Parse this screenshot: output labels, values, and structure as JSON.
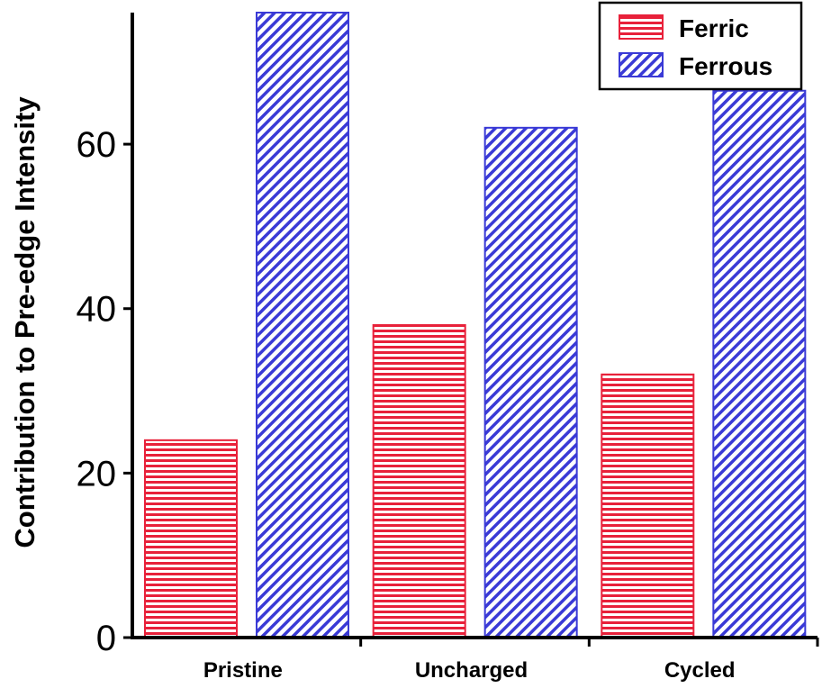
{
  "chart_data": {
    "type": "bar",
    "categories": [
      "Pristine",
      "Uncharged",
      "Cycled"
    ],
    "series": [
      {
        "name": "Ferric",
        "values": [
          24,
          38,
          32
        ],
        "color": "#e8213a",
        "pattern": "horizontal-lines"
      },
      {
        "name": "Ferrous",
        "values": [
          76,
          62,
          66.5
        ],
        "color": "#3a3ad6",
        "pattern": "diagonal-lines"
      }
    ],
    "title": "",
    "xlabel": "",
    "ylabel": "Contribution to Pre-edge Intensity",
    "ylim": [
      0,
      76
    ],
    "yticks": [
      0,
      20,
      40,
      60
    ],
    "grid": false,
    "legend_position": "top-right"
  }
}
